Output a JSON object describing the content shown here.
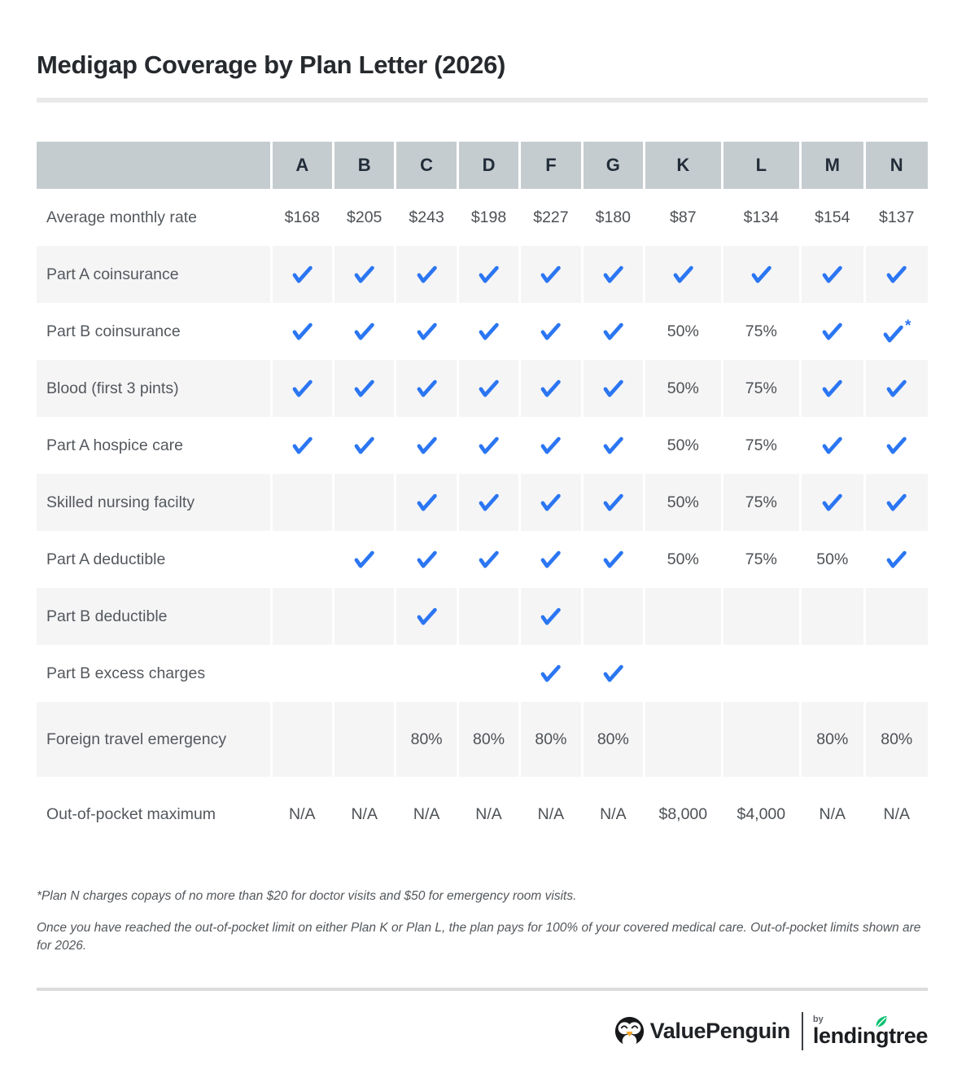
{
  "title": "Medigap Coverage by Plan Letter (2026)",
  "table": {
    "columns": [
      "A",
      "B",
      "C",
      "D",
      "F",
      "G",
      "K",
      "L",
      "M",
      "N"
    ],
    "rows": [
      {
        "label": "Average monthly rate",
        "tall": false,
        "cells": [
          "$168",
          "$205",
          "$243",
          "$198",
          "$227",
          "$180",
          "$87",
          "$134",
          "$154",
          "$137"
        ]
      },
      {
        "label": "Part A coinsurance",
        "tall": false,
        "cells": [
          "✓",
          "✓",
          "✓",
          "✓",
          "✓",
          "✓",
          "✓",
          "✓",
          "✓",
          "✓"
        ]
      },
      {
        "label": "Part B coinsurance",
        "tall": false,
        "cells": [
          "✓",
          "✓",
          "✓",
          "✓",
          "✓",
          "✓",
          "50%",
          "75%",
          "✓",
          "✓*"
        ]
      },
      {
        "label": "Blood (first 3 pints)",
        "tall": false,
        "cells": [
          "✓",
          "✓",
          "✓",
          "✓",
          "✓",
          "✓",
          "50%",
          "75%",
          "✓",
          "✓"
        ]
      },
      {
        "label": "Part A hospice care",
        "tall": false,
        "cells": [
          "✓",
          "✓",
          "✓",
          "✓",
          "✓",
          "✓",
          "50%",
          "75%",
          "✓",
          "✓"
        ]
      },
      {
        "label": "Skilled nursing facilty",
        "tall": false,
        "cells": [
          "",
          "",
          "✓",
          "✓",
          "✓",
          "✓",
          "50%",
          "75%",
          "✓",
          "✓"
        ]
      },
      {
        "label": "Part A deductible",
        "tall": false,
        "cells": [
          "",
          "✓",
          "✓",
          "✓",
          "✓",
          "✓",
          "50%",
          "75%",
          "50%",
          "✓"
        ]
      },
      {
        "label": "Part B deductible",
        "tall": false,
        "cells": [
          "",
          "",
          "✓",
          "",
          "✓",
          "",
          "",
          "",
          "",
          ""
        ]
      },
      {
        "label": "Part B excess charges",
        "tall": false,
        "cells": [
          "",
          "",
          "",
          "",
          "✓",
          "✓",
          "",
          "",
          "",
          ""
        ]
      },
      {
        "label": "Foreign travel emergency",
        "tall": true,
        "cells": [
          "",
          "",
          "80%",
          "80%",
          "80%",
          "80%",
          "",
          "",
          "80%",
          "80%"
        ]
      },
      {
        "label": "Out-of-pocket maximum",
        "tall": true,
        "cells": [
          "N/A",
          "N/A",
          "N/A",
          "N/A",
          "N/A",
          "N/A",
          "$8,000",
          "$4,000",
          "N/A",
          "N/A"
        ]
      }
    ]
  },
  "footnotes": [
    "*Plan N charges copays of no more than $20 for doctor visits and $50 for emergency room visits.",
    "Once you have reached the out-of-pocket limit on either Plan K or Plan L, the plan pays for 100% of your covered medical care. Out-of-pocket limits shown are for 2026."
  ],
  "footer": {
    "valuepenguin": "ValuePenguin",
    "by": "by",
    "lendingtree": "lendingtree"
  },
  "colors": {
    "check_blue": "#2B76F2",
    "header_bg": "#C5CCCF",
    "row_alt_bg": "#F5F5F6",
    "leaf_green": "#00C06E"
  }
}
